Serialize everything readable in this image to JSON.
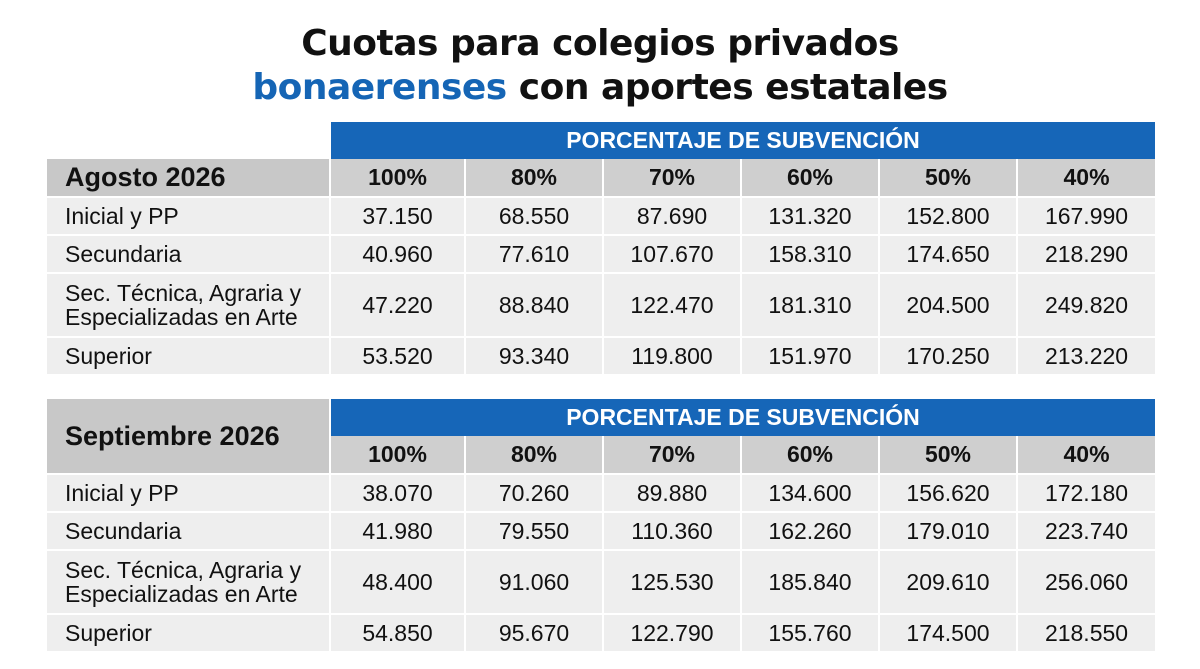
{
  "title": {
    "line1": "Cuotas para colegios privados",
    "line2_blue": "bonaerenses",
    "line2_rest": "con aportes estatales"
  },
  "colors": {
    "accent_blue": "#1666b8",
    "header_gray": "#c8c8c8",
    "row_gray": "#eeeeee"
  },
  "tables": [
    {
      "period": "Agosto 2026",
      "band": "PORCENTAJE DE SUBVENCIÓN",
      "percentages": [
        "100%",
        "80%",
        "70%",
        "60%",
        "50%",
        "40%"
      ],
      "rows": [
        {
          "label": "Inicial y PP",
          "values": [
            "37.150",
            "68.550",
            "87.690",
            "131.320",
            "152.800",
            "167.990"
          ]
        },
        {
          "label": "Secundaria",
          "values": [
            "40.960",
            "77.610",
            "107.670",
            "158.310",
            "174.650",
            "218.290"
          ]
        },
        {
          "label_line1": "Sec. Técnica, Agraria y",
          "label_line2": "Especializadas en Arte",
          "values": [
            "47.220",
            "88.840",
            "122.470",
            "181.310",
            "204.500",
            "249.820"
          ]
        },
        {
          "label": "Superior",
          "values": [
            "53.520",
            "93.340",
            "119.800",
            "151.970",
            "170.250",
            "213.220"
          ]
        }
      ]
    },
    {
      "period": "Septiembre 2026",
      "band": "PORCENTAJE DE SUBVENCIÓN",
      "percentages": [
        "100%",
        "80%",
        "70%",
        "60%",
        "50%",
        "40%"
      ],
      "rows": [
        {
          "label": "Inicial y PP",
          "values": [
            "38.070",
            "70.260",
            "89.880",
            "134.600",
            "156.620",
            "172.180"
          ]
        },
        {
          "label": "Secundaria",
          "values": [
            "41.980",
            "79.550",
            "110.360",
            "162.260",
            "179.010",
            "223.740"
          ]
        },
        {
          "label_line1": "Sec. Técnica, Agraria y",
          "label_line2": "Especializadas en Arte",
          "values": [
            "48.400",
            "91.060",
            "125.530",
            "185.840",
            "209.610",
            "256.060"
          ]
        },
        {
          "label": "Superior",
          "values": [
            "54.850",
            "95.670",
            "122.790",
            "155.760",
            "174.500",
            "218.550"
          ]
        }
      ]
    }
  ]
}
